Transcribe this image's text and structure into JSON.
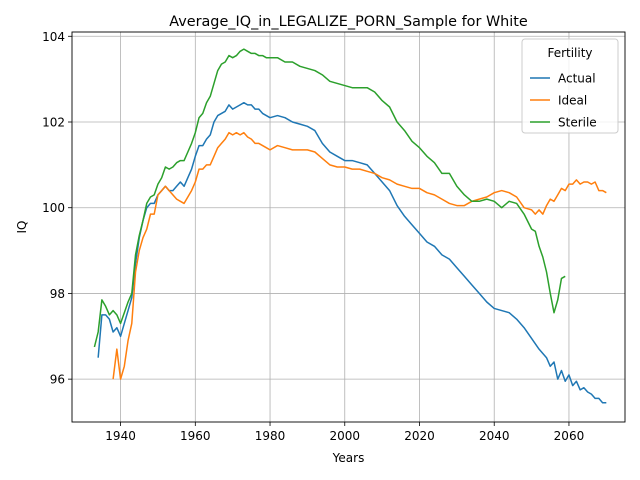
{
  "chart_data": {
    "type": "line",
    "title": "Average_IQ_in_LEGALIZE_PORN_Sample for White",
    "xlabel": "Years",
    "ylabel": "IQ",
    "xlim": [
      1927,
      2075
    ],
    "ylim": [
      95.0,
      104.1
    ],
    "xticks": [
      1940,
      1960,
      1980,
      2000,
      2020,
      2040,
      2060
    ],
    "yticks": [
      96,
      98,
      100,
      102,
      104
    ],
    "grid": true,
    "legend": {
      "title": "Fertility",
      "placement": "top-right"
    },
    "series": [
      {
        "name": "Actual",
        "color": "#1f77b4",
        "points": [
          [
            1934,
            96.5
          ],
          [
            1935,
            97.5
          ],
          [
            1936,
            97.5
          ],
          [
            1937,
            97.4
          ],
          [
            1938,
            97.1
          ],
          [
            1939,
            97.2
          ],
          [
            1940,
            97.0
          ],
          [
            1941,
            97.3
          ],
          [
            1942,
            97.6
          ],
          [
            1943,
            97.9
          ],
          [
            1944,
            98.7
          ],
          [
            1945,
            99.3
          ],
          [
            1946,
            99.7
          ],
          [
            1947,
            100.0
          ],
          [
            1948,
            100.1
          ],
          [
            1949,
            100.1
          ],
          [
            1950,
            100.3
          ],
          [
            1951,
            100.4
          ],
          [
            1952,
            100.5
          ],
          [
            1953,
            100.4
          ],
          [
            1954,
            100.4
          ],
          [
            1955,
            100.5
          ],
          [
            1956,
            100.6
          ],
          [
            1957,
            100.5
          ],
          [
            1958,
            100.7
          ],
          [
            1959,
            100.9
          ],
          [
            1960,
            101.2
          ],
          [
            1961,
            101.45
          ],
          [
            1962,
            101.45
          ],
          [
            1963,
            101.6
          ],
          [
            1964,
            101.7
          ],
          [
            1965,
            102.0
          ],
          [
            1966,
            102.15
          ],
          [
            1967,
            102.2
          ],
          [
            1968,
            102.25
          ],
          [
            1969,
            102.4
          ],
          [
            1970,
            102.3
          ],
          [
            1971,
            102.35
          ],
          [
            1972,
            102.4
          ],
          [
            1973,
            102.45
          ],
          [
            1974,
            102.4
          ],
          [
            1975,
            102.4
          ],
          [
            1976,
            102.3
          ],
          [
            1977,
            102.3
          ],
          [
            1978,
            102.2
          ],
          [
            1979,
            102.15
          ],
          [
            1980,
            102.1
          ],
          [
            1982,
            102.15
          ],
          [
            1984,
            102.1
          ],
          [
            1986,
            102.0
          ],
          [
            1988,
            101.95
          ],
          [
            1990,
            101.9
          ],
          [
            1992,
            101.8
          ],
          [
            1994,
            101.5
          ],
          [
            1996,
            101.3
          ],
          [
            1998,
            101.2
          ],
          [
            2000,
            101.1
          ],
          [
            2002,
            101.1
          ],
          [
            2004,
            101.05
          ],
          [
            2006,
            101.0
          ],
          [
            2008,
            100.8
          ],
          [
            2010,
            100.6
          ],
          [
            2012,
            100.4
          ],
          [
            2014,
            100.05
          ],
          [
            2016,
            99.8
          ],
          [
            2018,
            99.6
          ],
          [
            2020,
            99.4
          ],
          [
            2022,
            99.2
          ],
          [
            2024,
            99.1
          ],
          [
            2026,
            98.9
          ],
          [
            2028,
            98.8
          ],
          [
            2030,
            98.6
          ],
          [
            2032,
            98.4
          ],
          [
            2034,
            98.2
          ],
          [
            2036,
            98.0
          ],
          [
            2038,
            97.8
          ],
          [
            2040,
            97.65
          ],
          [
            2042,
            97.6
          ],
          [
            2044,
            97.55
          ],
          [
            2046,
            97.4
          ],
          [
            2048,
            97.2
          ],
          [
            2050,
            96.95
          ],
          [
            2052,
            96.7
          ],
          [
            2054,
            96.5
          ],
          [
            2055,
            96.3
          ],
          [
            2056,
            96.4
          ],
          [
            2057,
            96.0
          ],
          [
            2058,
            96.2
          ],
          [
            2059,
            95.95
          ],
          [
            2060,
            96.1
          ],
          [
            2061,
            95.85
          ],
          [
            2062,
            95.95
          ],
          [
            2063,
            95.75
          ],
          [
            2064,
            95.8
          ],
          [
            2065,
            95.7
          ],
          [
            2066,
            95.65
          ],
          [
            2067,
            95.55
          ],
          [
            2068,
            95.55
          ],
          [
            2069,
            95.45
          ],
          [
            2070,
            95.45
          ]
        ]
      },
      {
        "name": "Ideal",
        "color": "#ff7f0e",
        "points": [
          [
            1938,
            96.0
          ],
          [
            1939,
            96.7
          ],
          [
            1940,
            96.0
          ],
          [
            1941,
            96.3
          ],
          [
            1942,
            96.9
          ],
          [
            1943,
            97.3
          ],
          [
            1944,
            98.5
          ],
          [
            1945,
            99.0
          ],
          [
            1946,
            99.3
          ],
          [
            1947,
            99.5
          ],
          [
            1948,
            99.85
          ],
          [
            1949,
            99.85
          ],
          [
            1950,
            100.3
          ],
          [
            1951,
            100.4
          ],
          [
            1952,
            100.5
          ],
          [
            1953,
            100.4
          ],
          [
            1954,
            100.3
          ],
          [
            1955,
            100.2
          ],
          [
            1956,
            100.15
          ],
          [
            1957,
            100.1
          ],
          [
            1958,
            100.25
          ],
          [
            1959,
            100.4
          ],
          [
            1960,
            100.6
          ],
          [
            1961,
            100.9
          ],
          [
            1962,
            100.9
          ],
          [
            1963,
            101.0
          ],
          [
            1964,
            101.0
          ],
          [
            1965,
            101.2
          ],
          [
            1966,
            101.4
          ],
          [
            1967,
            101.5
          ],
          [
            1968,
            101.6
          ],
          [
            1969,
            101.75
          ],
          [
            1970,
            101.7
          ],
          [
            1971,
            101.75
          ],
          [
            1972,
            101.7
          ],
          [
            1973,
            101.75
          ],
          [
            1974,
            101.65
          ],
          [
            1975,
            101.6
          ],
          [
            1976,
            101.5
          ],
          [
            1977,
            101.5
          ],
          [
            1978,
            101.45
          ],
          [
            1979,
            101.4
          ],
          [
            1980,
            101.35
          ],
          [
            1982,
            101.45
          ],
          [
            1984,
            101.4
          ],
          [
            1986,
            101.35
          ],
          [
            1988,
            101.35
          ],
          [
            1990,
            101.35
          ],
          [
            1992,
            101.3
          ],
          [
            1994,
            101.15
          ],
          [
            1996,
            101.0
          ],
          [
            1998,
            100.95
          ],
          [
            2000,
            100.95
          ],
          [
            2002,
            100.9
          ],
          [
            2004,
            100.9
          ],
          [
            2006,
            100.85
          ],
          [
            2008,
            100.8
          ],
          [
            2010,
            100.7
          ],
          [
            2012,
            100.65
          ],
          [
            2014,
            100.55
          ],
          [
            2016,
            100.5
          ],
          [
            2018,
            100.45
          ],
          [
            2020,
            100.45
          ],
          [
            2022,
            100.35
          ],
          [
            2024,
            100.3
          ],
          [
            2026,
            100.2
          ],
          [
            2028,
            100.1
          ],
          [
            2030,
            100.05
          ],
          [
            2032,
            100.05
          ],
          [
            2034,
            100.15
          ],
          [
            2036,
            100.2
          ],
          [
            2038,
            100.25
          ],
          [
            2040,
            100.35
          ],
          [
            2042,
            100.4
          ],
          [
            2044,
            100.35
          ],
          [
            2046,
            100.25
          ],
          [
            2048,
            100.0
          ],
          [
            2050,
            99.95
          ],
          [
            2051,
            99.85
          ],
          [
            2052,
            99.95
          ],
          [
            2053,
            99.85
          ],
          [
            2054,
            100.05
          ],
          [
            2055,
            100.2
          ],
          [
            2056,
            100.15
          ],
          [
            2057,
            100.3
          ],
          [
            2058,
            100.45
          ],
          [
            2059,
            100.4
          ],
          [
            2060,
            100.55
          ],
          [
            2061,
            100.55
          ],
          [
            2062,
            100.65
          ],
          [
            2063,
            100.55
          ],
          [
            2064,
            100.6
          ],
          [
            2065,
            100.6
          ],
          [
            2066,
            100.55
          ],
          [
            2067,
            100.6
          ],
          [
            2068,
            100.4
          ],
          [
            2069,
            100.4
          ],
          [
            2070,
            100.35
          ]
        ]
      },
      {
        "name": "Sterile",
        "color": "#2ca02c",
        "points": [
          [
            1933,
            96.75
          ],
          [
            1934,
            97.1
          ],
          [
            1935,
            97.85
          ],
          [
            1936,
            97.7
          ],
          [
            1937,
            97.5
          ],
          [
            1938,
            97.6
          ],
          [
            1939,
            97.5
          ],
          [
            1940,
            97.3
          ],
          [
            1941,
            97.55
          ],
          [
            1942,
            97.8
          ],
          [
            1943,
            98.0
          ],
          [
            1944,
            98.9
          ],
          [
            1945,
            99.35
          ],
          [
            1946,
            99.7
          ],
          [
            1947,
            100.1
          ],
          [
            1948,
            100.25
          ],
          [
            1949,
            100.3
          ],
          [
            1950,
            100.55
          ],
          [
            1951,
            100.7
          ],
          [
            1952,
            100.95
          ],
          [
            1953,
            100.9
          ],
          [
            1954,
            100.95
          ],
          [
            1955,
            101.05
          ],
          [
            1956,
            101.1
          ],
          [
            1957,
            101.1
          ],
          [
            1958,
            101.3
          ],
          [
            1959,
            101.5
          ],
          [
            1960,
            101.75
          ],
          [
            1961,
            102.1
          ],
          [
            1962,
            102.2
          ],
          [
            1963,
            102.45
          ],
          [
            1964,
            102.6
          ],
          [
            1965,
            102.9
          ],
          [
            1966,
            103.2
          ],
          [
            1967,
            103.35
          ],
          [
            1968,
            103.4
          ],
          [
            1969,
            103.55
          ],
          [
            1970,
            103.5
          ],
          [
            1971,
            103.55
          ],
          [
            1972,
            103.65
          ],
          [
            1973,
            103.7
          ],
          [
            1974,
            103.65
          ],
          [
            1975,
            103.6
          ],
          [
            1976,
            103.6
          ],
          [
            1977,
            103.55
          ],
          [
            1978,
            103.55
          ],
          [
            1979,
            103.5
          ],
          [
            1980,
            103.5
          ],
          [
            1982,
            103.5
          ],
          [
            1984,
            103.4
          ],
          [
            1986,
            103.4
          ],
          [
            1988,
            103.3
          ],
          [
            1990,
            103.25
          ],
          [
            1992,
            103.2
          ],
          [
            1994,
            103.1
          ],
          [
            1996,
            102.95
          ],
          [
            1998,
            102.9
          ],
          [
            2000,
            102.85
          ],
          [
            2002,
            102.8
          ],
          [
            2004,
            102.8
          ],
          [
            2006,
            102.8
          ],
          [
            2008,
            102.7
          ],
          [
            2010,
            102.5
          ],
          [
            2012,
            102.35
          ],
          [
            2014,
            102.0
          ],
          [
            2016,
            101.8
          ],
          [
            2018,
            101.55
          ],
          [
            2020,
            101.4
          ],
          [
            2022,
            101.2
          ],
          [
            2024,
            101.05
          ],
          [
            2026,
            100.8
          ],
          [
            2028,
            100.8
          ],
          [
            2030,
            100.5
          ],
          [
            2032,
            100.3
          ],
          [
            2034,
            100.15
          ],
          [
            2036,
            100.15
          ],
          [
            2038,
            100.2
          ],
          [
            2040,
            100.15
          ],
          [
            2042,
            100.0
          ],
          [
            2044,
            100.15
          ],
          [
            2046,
            100.1
          ],
          [
            2048,
            99.85
          ],
          [
            2050,
            99.5
          ],
          [
            2051,
            99.45
          ],
          [
            2052,
            99.1
          ],
          [
            2053,
            98.85
          ],
          [
            2054,
            98.5
          ],
          [
            2055,
            98.0
          ],
          [
            2056,
            97.55
          ],
          [
            2057,
            97.85
          ],
          [
            2058,
            98.35
          ],
          [
            2059,
            98.4
          ]
        ]
      }
    ]
  }
}
